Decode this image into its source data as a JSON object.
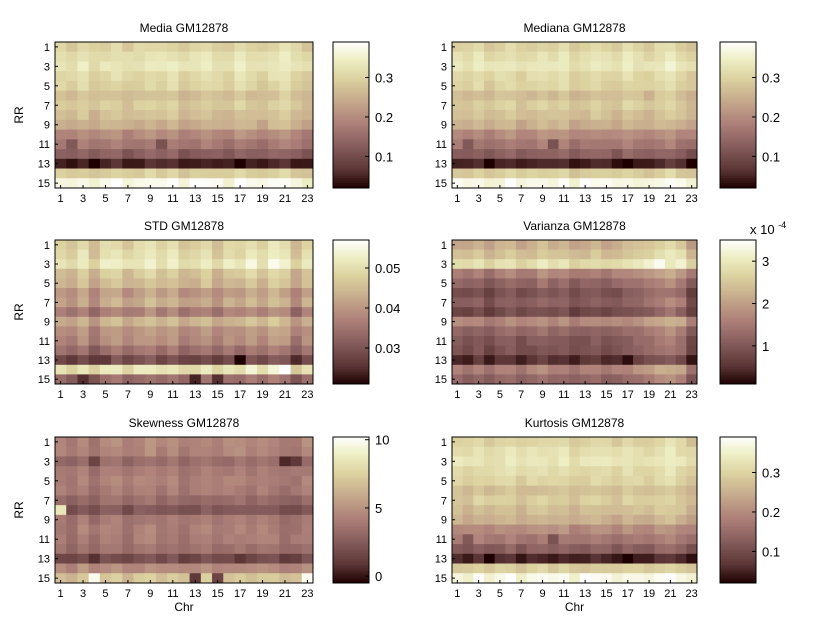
{
  "figure": {
    "colormap": "pink"
  },
  "chart_data": [
    {
      "type": "heatmap",
      "title": "Media GM12878",
      "ylabel": "RR",
      "xlabel": "",
      "x_ticks": [
        "1",
        "3",
        "5",
        "7",
        "9",
        "11",
        "13",
        "15",
        "17",
        "19",
        "21",
        "23"
      ],
      "y_ticks": [
        "1",
        "3",
        "5",
        "7",
        "9",
        "11",
        "13",
        "15"
      ],
      "n_cols": 23,
      "n_rows": 15,
      "row_profile": [
        0.3,
        0.32,
        0.33,
        0.31,
        0.3,
        0.27,
        0.29,
        0.27,
        0.25,
        0.2,
        0.17,
        0.13,
        0.05,
        0.29,
        0.37
      ],
      "col_profile": [
        0,
        -0.01,
        0.01,
        -0.01,
        0,
        0.01,
        -0.01,
        0,
        0.01,
        0,
        0.01,
        -0.01,
        0,
        0.01,
        0,
        -0.01,
        0.01,
        0,
        -0.01,
        0.01,
        0.02,
        0,
        -0.02
      ],
      "cells": [
        {
          "r": 11,
          "c": 2,
          "v": 0.12
        },
        {
          "r": 11,
          "c": 10,
          "v": 0.11
        },
        {
          "r": 13,
          "c": 4,
          "v": 0.01
        },
        {
          "r": 13,
          "c": 17,
          "v": 0.01
        },
        {
          "r": 15,
          "c": 6,
          "v": 0.39
        },
        {
          "r": 15,
          "c": 13,
          "v": 0.39
        }
      ],
      "clim": [
        0.02,
        0.39
      ],
      "colorbar_ticks": [
        {
          "value": 0.1,
          "label": "0.1"
        },
        {
          "value": 0.2,
          "label": "0.2"
        },
        {
          "value": 0.3,
          "label": "0.3"
        }
      ]
    },
    {
      "type": "heatmap",
      "title": "Mediana GM12878",
      "ylabel": "",
      "xlabel": "",
      "x_ticks": [
        "1",
        "3",
        "5",
        "7",
        "9",
        "11",
        "13",
        "15",
        "17",
        "19",
        "21",
        "23"
      ],
      "y_ticks": [
        "1",
        "3",
        "5",
        "7",
        "9",
        "11",
        "13",
        "15"
      ],
      "n_cols": 23,
      "n_rows": 15,
      "row_profile": [
        0.3,
        0.32,
        0.33,
        0.31,
        0.3,
        0.27,
        0.29,
        0.27,
        0.25,
        0.2,
        0.17,
        0.13,
        0.05,
        0.29,
        0.37
      ],
      "col_profile": [
        0,
        -0.01,
        0.01,
        -0.01,
        0,
        0.01,
        -0.01,
        0,
        0.01,
        0,
        0.01,
        -0.01,
        0,
        0.01,
        0,
        -0.01,
        0.01,
        0,
        -0.01,
        0.01,
        0.02,
        0,
        -0.02
      ],
      "cells": [
        {
          "r": 11,
          "c": 2,
          "v": 0.12
        },
        {
          "r": 11,
          "c": 10,
          "v": 0.11
        },
        {
          "r": 13,
          "c": 4,
          "v": 0.01
        },
        {
          "r": 13,
          "c": 17,
          "v": 0.01
        },
        {
          "r": 15,
          "c": 6,
          "v": 0.39
        },
        {
          "r": 15,
          "c": 13,
          "v": 0.39
        }
      ],
      "clim": [
        0.02,
        0.39
      ],
      "colorbar_ticks": [
        {
          "value": 0.1,
          "label": "0.1"
        },
        {
          "value": 0.2,
          "label": "0.2"
        },
        {
          "value": 0.3,
          "label": "0.3"
        }
      ]
    },
    {
      "type": "heatmap",
      "title": "STD GM12878",
      "ylabel": "RR",
      "xlabel": "",
      "x_ticks": [
        "1",
        "3",
        "5",
        "7",
        "9",
        "11",
        "13",
        "15",
        "17",
        "19",
        "21",
        "23"
      ],
      "y_ticks": [
        "1",
        "3",
        "5",
        "7",
        "9",
        "11",
        "13",
        "15"
      ],
      "n_cols": 23,
      "n_rows": 15,
      "row_profile": [
        0.048,
        0.049,
        0.051,
        0.046,
        0.044,
        0.04,
        0.042,
        0.036,
        0.043,
        0.039,
        0.038,
        0.034,
        0.028,
        0.05,
        0.033
      ],
      "col_profile": [
        0,
        -0.002,
        0.002,
        -0.003,
        0.001,
        0.002,
        -0.001,
        0.001,
        0.003,
        0,
        0.002,
        -0.001,
        0,
        0.002,
        -0.002,
        0.001,
        0,
        0.003,
        0,
        0.004,
        0.002,
        -0.003,
        0.001
      ],
      "cells": [
        {
          "r": 13,
          "c": 4,
          "v": 0.026
        },
        {
          "r": 13,
          "c": 5,
          "v": 0.026
        },
        {
          "r": 13,
          "c": 17,
          "v": 0.021
        },
        {
          "r": 15,
          "c": 3,
          "v": 0.025
        },
        {
          "r": 15,
          "c": 13,
          "v": 0.024
        },
        {
          "r": 15,
          "c": 15,
          "v": 0.025
        },
        {
          "r": 14,
          "c": 21,
          "v": 0.057
        }
      ],
      "clim": [
        0.021,
        0.057
      ],
      "colorbar_ticks": [
        {
          "value": 0.03,
          "label": "0.03"
        },
        {
          "value": 0.04,
          "label": "0.04"
        },
        {
          "value": 0.05,
          "label": "0.05"
        }
      ]
    },
    {
      "type": "heatmap",
      "title": "Varianza GM12878",
      "ylabel": "",
      "xlabel": "",
      "x_ticks": [
        "1",
        "3",
        "5",
        "7",
        "9",
        "11",
        "13",
        "15",
        "17",
        "19",
        "21",
        "23"
      ],
      "y_ticks": [
        "1",
        "3",
        "5",
        "7",
        "9",
        "11",
        "13",
        "15"
      ],
      "n_cols": 23,
      "n_rows": 15,
      "row_profile": [
        2.2,
        2.4,
        2.8,
        1.6,
        1.2,
        0.9,
        1.1,
        0.8,
        1.7,
        1.2,
        1.0,
        0.9,
        0.5,
        1.6,
        1.2
      ],
      "col_profile": [
        0,
        -0.1,
        0.1,
        -0.2,
        0,
        0.1,
        -0.1,
        0,
        0.2,
        0,
        0.1,
        -0.1,
        0,
        0.1,
        -0.1,
        0,
        0.1,
        0.2,
        0.3,
        0.5,
        0.6,
        0.4,
        -0.2
      ],
      "cells": [
        {
          "r": 3,
          "c": 20,
          "v": 3.4
        },
        {
          "r": 3,
          "c": 21,
          "v": 3.0
        },
        {
          "r": 13,
          "c": 4,
          "v": 0.3
        },
        {
          "r": 13,
          "c": 17,
          "v": 0.2
        }
      ],
      "clim": [
        0.1,
        3.5
      ],
      "colorbar_ticks": [
        {
          "value": 1,
          "label": "1"
        },
        {
          "value": 2,
          "label": "2"
        },
        {
          "value": 3,
          "label": "3"
        }
      ],
      "colorbar_exponent": {
        "base": "x 10",
        "exp": "-4"
      }
    },
    {
      "type": "heatmap",
      "title": "Skewness GM12878",
      "ylabel": "RR",
      "xlabel": "Chr",
      "x_ticks": [
        "1",
        "3",
        "5",
        "7",
        "9",
        "11",
        "13",
        "15",
        "17",
        "19",
        "21",
        "23"
      ],
      "y_ticks": [
        "1",
        "3",
        "5",
        "7",
        "9",
        "11",
        "13",
        "15"
      ],
      "n_cols": 23,
      "n_rows": 15,
      "row_profile": [
        4.5,
        4.3,
        3.2,
        4.0,
        4.2,
        4.0,
        3.2,
        2.3,
        3.8,
        4.1,
        4.0,
        3.5,
        1.8,
        4.6,
        7.0
      ],
      "col_profile": [
        0,
        -0.5,
        0.4,
        -0.6,
        0.2,
        0.3,
        -0.4,
        0.1,
        0.5,
        -0.2,
        0.3,
        -0.3,
        0,
        0.4,
        -0.2,
        0.1,
        0.3,
        -0.1,
        0.2,
        0.1,
        -0.5,
        -0.3,
        0.2
      ],
      "cells": [
        {
          "r": 8,
          "c": 1,
          "v": 8.5
        },
        {
          "r": 3,
          "c": 21,
          "v": 0.5
        },
        {
          "r": 3,
          "c": 22,
          "v": 1.0
        },
        {
          "r": 13,
          "c": 4,
          "v": 0.7
        },
        {
          "r": 13,
          "c": 17,
          "v": 0.9
        },
        {
          "r": 15,
          "c": 4,
          "v": 9.8
        },
        {
          "r": 15,
          "c": 23,
          "v": 9.9
        },
        {
          "r": 15,
          "c": 13,
          "v": 1.0
        },
        {
          "r": 15,
          "c": 15,
          "v": 1.5
        },
        {
          "r": 3,
          "c": 4,
          "v": 1.5
        }
      ],
      "clim": [
        -0.5,
        10.2
      ],
      "colorbar_ticks": [
        {
          "value": 0,
          "label": "0"
        },
        {
          "value": 5,
          "label": "5"
        },
        {
          "value": 10,
          "label": "10"
        }
      ]
    },
    {
      "type": "heatmap",
      "title": "Kurtosis GM12878",
      "ylabel": "",
      "xlabel": "Chr",
      "x_ticks": [
        "1",
        "3",
        "5",
        "7",
        "9",
        "11",
        "13",
        "15",
        "17",
        "19",
        "21",
        "23"
      ],
      "y_ticks": [
        "1",
        "3",
        "5",
        "7",
        "9",
        "11",
        "13",
        "15"
      ],
      "n_cols": 23,
      "n_rows": 15,
      "row_profile": [
        0.3,
        0.32,
        0.33,
        0.31,
        0.3,
        0.27,
        0.29,
        0.27,
        0.25,
        0.2,
        0.17,
        0.13,
        0.05,
        0.29,
        0.37
      ],
      "col_profile": [
        0,
        -0.01,
        0.01,
        -0.01,
        0,
        0.01,
        -0.01,
        0,
        0.01,
        0,
        0.01,
        -0.01,
        0,
        0.01,
        0,
        -0.01,
        0.01,
        0,
        -0.01,
        0.01,
        0.02,
        0,
        -0.02
      ],
      "cells": [
        {
          "r": 11,
          "c": 2,
          "v": 0.12
        },
        {
          "r": 11,
          "c": 10,
          "v": 0.11
        },
        {
          "r": 13,
          "c": 4,
          "v": 0.01
        },
        {
          "r": 13,
          "c": 17,
          "v": 0.01
        },
        {
          "r": 15,
          "c": 6,
          "v": 0.39
        },
        {
          "r": 15,
          "c": 13,
          "v": 0.39
        }
      ],
      "clim": [
        0.02,
        0.39
      ],
      "colorbar_ticks": [
        {
          "value": 0.1,
          "label": "0.1"
        },
        {
          "value": 0.2,
          "label": "0.2"
        },
        {
          "value": 0.3,
          "label": "0.3"
        }
      ]
    }
  ]
}
